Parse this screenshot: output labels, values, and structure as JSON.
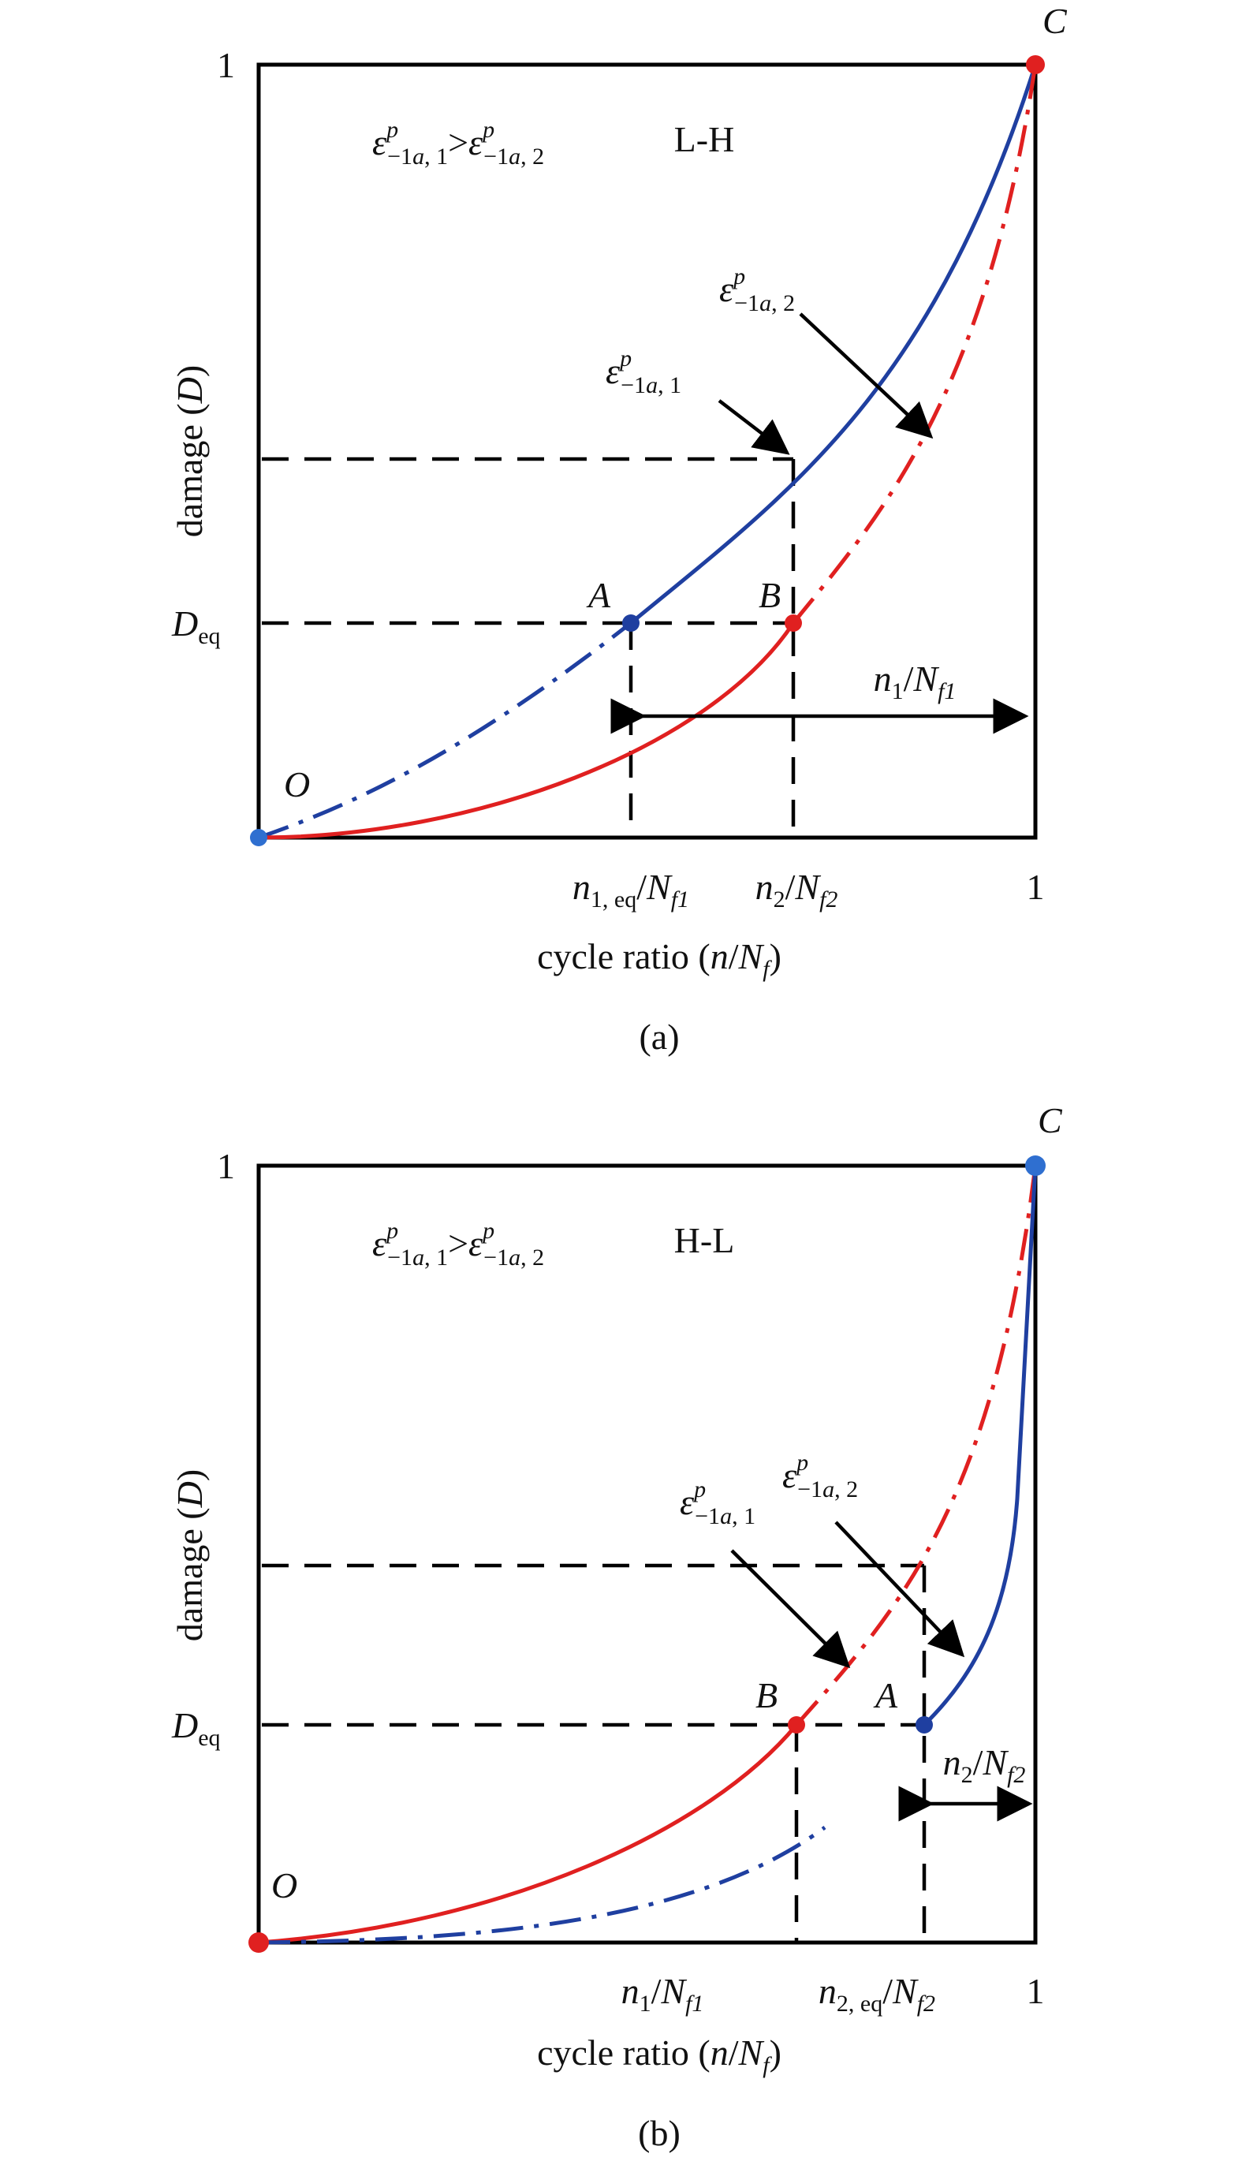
{
  "panel_a": {
    "y_tick_top": "1",
    "x_tick_right": "1",
    "y_label": "damage (D)",
    "x_label": "cycle ratio (n/Nf)",
    "caption": "(a)",
    "regime": "L-H",
    "condition": "ε^p −1a, 1 > ε^p −1a, 2",
    "d_eq_label": "Deq",
    "points": {
      "O": "O",
      "A": "A",
      "B": "B",
      "C": "C"
    },
    "curve1_label": "ε^p −1a, 1",
    "curve2_label": "ε^p −1a, 2",
    "x_tick_1": "n1, eq/Nf1",
    "x_tick_2": "n2/Nf2",
    "span_label": "n1/Nf1"
  },
  "panel_b": {
    "y_tick_top": "1",
    "x_tick_right": "1",
    "y_label": "damage (D)",
    "x_label": "cycle ratio (n/Nf)",
    "caption": "(b)",
    "regime": "H-L",
    "condition": "ε^p −1a, 1 > ε^p −1a, 2",
    "d_eq_label": "Deq",
    "points": {
      "O": "O",
      "A": "A",
      "B": "B",
      "C": "C"
    },
    "curve1_label": "ε^p −1a, 1",
    "curve2_label": "ε^p −1a, 2",
    "x_tick_1": "n1/Nf1",
    "x_tick_2": "n2, eq/Nf2",
    "span_label": "n2/Nf2"
  },
  "colors": {
    "blue": "#1f3fa0",
    "red": "#e02020",
    "blue_point": "#2f6fd0"
  }
}
